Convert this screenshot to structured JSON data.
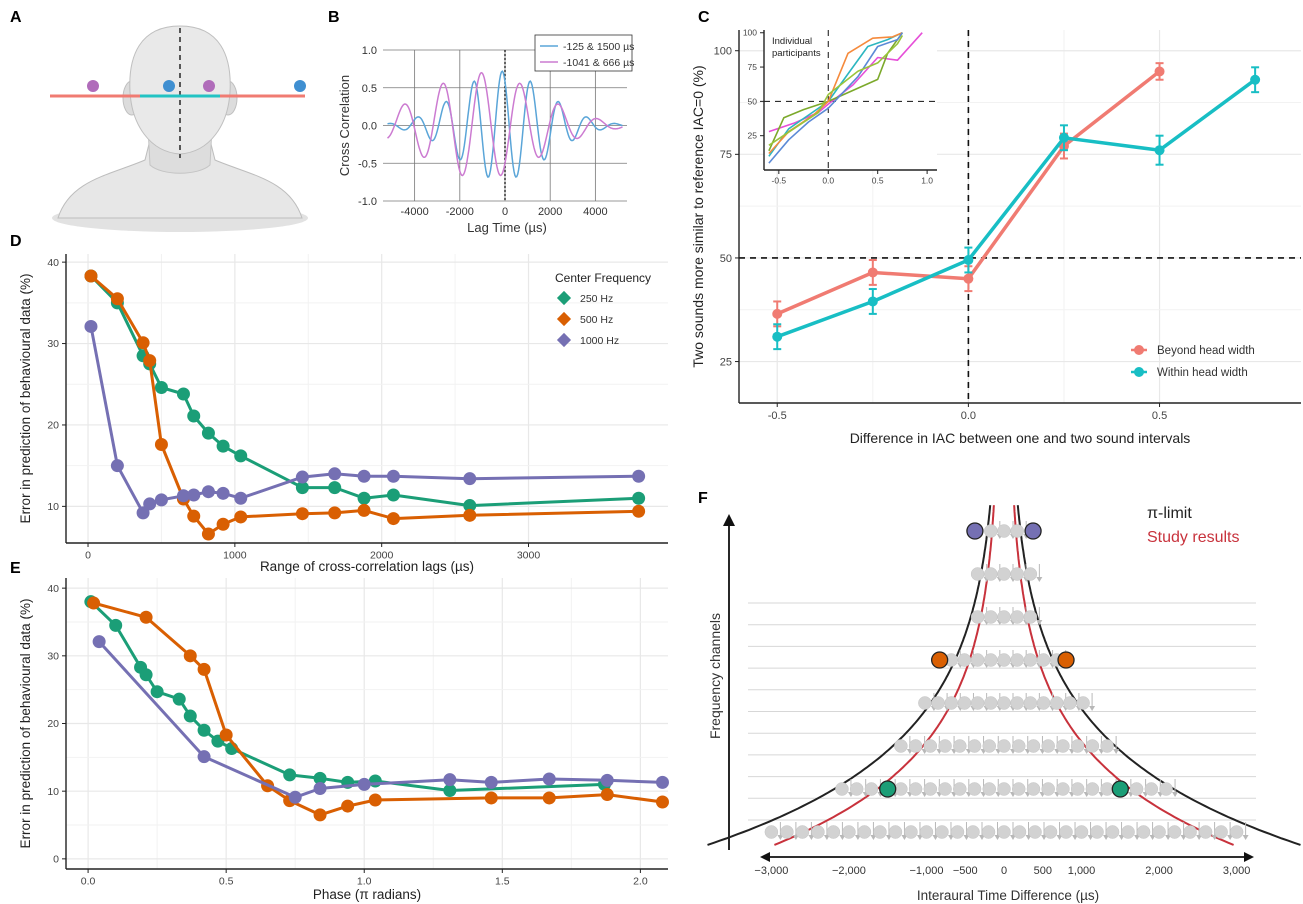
{
  "panel_letters": [
    "A",
    "B",
    "C",
    "D",
    "E",
    "F"
  ],
  "colors": {
    "green": "#1b9e77",
    "orange": "#d95f02",
    "purple": "#7570b3",
    "salmon": "#f07b72",
    "teal": "#18bec4",
    "blue": "#5aa5d8",
    "pink": "#cc7bd1",
    "red_head_line": "#f07b72",
    "teal_head_line": "#22c3c3",
    "head_dot_purple": "#b06cba",
    "head_dot_blue": "#3f8fd1",
    "grid": "#e6e6e6",
    "study_red": "#c8323c"
  },
  "chart_data": [
    {
      "id": "B",
      "type": "line",
      "xlabel": "Lag Time (µs)",
      "ylabel": "Cross Correlation",
      "xlim": [
        -5400,
        5400
      ],
      "ylim": [
        -1.0,
        1.0
      ],
      "x_ticks": [
        -4000,
        -2000,
        0,
        2000,
        4000
      ],
      "x_tick_labels": [
        "-4000",
        "-2000",
        "0",
        "2000",
        "4000"
      ],
      "y_ticks": [
        -1.0,
        -0.5,
        0.0,
        0.5,
        1.0
      ],
      "y_tick_labels": [
        "-1.0",
        "-0.5",
        "0.0",
        "0.5",
        "1.0"
      ],
      "grid": true,
      "legend_position": "top-right",
      "series": [
        {
          "name": "-125 & 1500 µs",
          "color": "#5aa5d8",
          "cf_hz": 800,
          "lag_us": 125,
          "env_sigma_us": 2300,
          "amp": 0.72
        },
        {
          "name": "-1041 & 666 µs",
          "color": "#cc7bd1",
          "cf_hz": 585,
          "lag_us": 1041,
          "env_sigma_us": 3000,
          "amp": 0.7
        }
      ]
    },
    {
      "id": "C",
      "type": "line",
      "xlabel": "Difference in IAC between one and two sound intervals",
      "ylabel": "Two sounds more similar to reference IAC=0 (%)",
      "xlim": [
        -0.6,
        0.87
      ],
      "ylim": [
        15,
        105
      ],
      "x_ticks": [
        -0.5,
        0.0,
        0.5
      ],
      "x_tick_labels": [
        "-0.5",
        "0.0",
        "0.5"
      ],
      "y_ticks": [
        25,
        50,
        75,
        100
      ],
      "y_tick_labels": [
        "25",
        "50",
        "75",
        "100"
      ],
      "grid": true,
      "legend_position": "bottom-right",
      "reference_lines": {
        "x": 0,
        "y": 50
      },
      "series": [
        {
          "name": "Beyond head width",
          "color": "#f07b72",
          "x": [
            -0.5,
            -0.25,
            0.0,
            0.25,
            0.5
          ],
          "y": [
            36.5,
            46.5,
            45.0,
            77.0,
            95.0
          ],
          "err": [
            3,
            3,
            3,
            3,
            2
          ]
        },
        {
          "name": "Within head width",
          "color": "#18bec4",
          "x": [
            -0.5,
            -0.25,
            0.0,
            0.25,
            0.5,
            0.75
          ],
          "y": [
            31.0,
            39.5,
            49.5,
            79.0,
            76.0,
            93.0
          ],
          "err": [
            3,
            3,
            3,
            3,
            3.5,
            3
          ]
        }
      ]
    },
    {
      "id": "C-inset",
      "type": "line",
      "title": "Individual\nparticipants",
      "xlim": [
        -0.65,
        1.1
      ],
      "ylim": [
        0,
        102
      ],
      "x_ticks": [
        -0.5,
        0.0,
        0.5,
        1.0
      ],
      "x_tick_labels": [
        "-0.5",
        "0.0",
        "0.5",
        "1.0"
      ],
      "y_ticks": [
        25,
        50,
        75,
        100
      ],
      "y_tick_labels": [
        "25",
        "50",
        "75",
        "100"
      ],
      "reference_lines": {
        "x": 0,
        "y": 50
      },
      "series": [
        {
          "color": "#e64fd8",
          "x": [
            -0.6,
            -0.35,
            -0.1,
            0.0,
            0.25,
            0.5,
            0.7,
            0.95
          ],
          "y": [
            28,
            34,
            42,
            48,
            62,
            82,
            80,
            100
          ]
        },
        {
          "color": "#2cb6c0",
          "x": [
            -0.6,
            -0.4,
            -0.2,
            0.0,
            0.2,
            0.4,
            0.6,
            0.75
          ],
          "y": [
            10,
            30,
            40,
            50,
            70,
            90,
            95,
            100
          ]
        },
        {
          "color": "#7ca92b",
          "x": [
            -0.6,
            -0.45,
            -0.25,
            0.0,
            0.25,
            0.5,
            0.6,
            0.75
          ],
          "y": [
            14,
            38,
            44,
            50,
            58,
            66,
            85,
            100
          ]
        },
        {
          "color": "#f58a3c",
          "x": [
            -0.6,
            -0.4,
            -0.15,
            0.0,
            0.2,
            0.45,
            0.65,
            0.75
          ],
          "y": [
            12,
            28,
            40,
            50,
            85,
            96,
            97,
            100
          ]
        },
        {
          "color": "#5c8ad6",
          "x": [
            -0.6,
            -0.4,
            -0.2,
            0.0,
            0.3,
            0.5,
            0.7,
            0.75
          ],
          "y": [
            5,
            22,
            35,
            45,
            68,
            90,
            95,
            100
          ]
        },
        {
          "color": "#9ac43a",
          "x": [
            -0.6,
            -0.35,
            -0.1,
            0.0,
            0.3,
            0.5,
            0.7,
            0.75
          ],
          "y": [
            18,
            30,
            42,
            55,
            72,
            78,
            92,
            98
          ]
        }
      ]
    },
    {
      "id": "D",
      "type": "line",
      "xlabel": "Range of cross-correlation lags (µs)",
      "ylabel": "Error in prediction of behavioural data (%)",
      "xlim": [
        -150,
        3950
      ],
      "ylim": [
        5.5,
        41
      ],
      "x_ticks": [
        0,
        1000,
        2000,
        3000
      ],
      "x_tick_labels": [
        "0",
        "1000",
        "2000",
        "3000"
      ],
      "y_ticks": [
        10,
        20,
        30,
        40
      ],
      "y_tick_labels": [
        "10",
        "20",
        "30",
        "40"
      ],
      "grid": true,
      "legend_title": "Center Frequency",
      "legend_position": "top-right",
      "series": [
        {
          "name": "250 Hz",
          "color": "#1b9e77",
          "x": [
            20,
            200,
            375,
            420,
            500,
            650,
            720,
            820,
            920,
            1040,
            1460,
            1680,
            1880,
            2080,
            2600,
            3750
          ],
          "y": [
            38.3,
            35.0,
            28.5,
            27.5,
            24.6,
            23.8,
            21.1,
            19.0,
            17.4,
            16.2,
            12.3,
            12.3,
            11.0,
            11.4,
            10.1,
            11.0
          ]
        },
        {
          "name": "500 Hz",
          "color": "#d95f02",
          "x": [
            20,
            200,
            375,
            420,
            500,
            650,
            720,
            820,
            920,
            1040,
            1460,
            1680,
            1880,
            2080,
            2600,
            3750
          ],
          "y": [
            38.3,
            35.5,
            30.1,
            27.9,
            17.6,
            10.9,
            8.8,
            6.6,
            7.8,
            8.7,
            9.1,
            9.2,
            9.5,
            8.5,
            8.9,
            9.4
          ]
        },
        {
          "name": "1000 Hz",
          "color": "#7570b3",
          "x": [
            20,
            200,
            375,
            420,
            500,
            650,
            720,
            820,
            920,
            1040,
            1460,
            1680,
            1880,
            2080,
            2600,
            3750
          ],
          "y": [
            32.1,
            15.0,
            9.2,
            10.3,
            10.8,
            11.3,
            11.4,
            11.8,
            11.6,
            11.0,
            13.6,
            14.0,
            13.7,
            13.7,
            13.4,
            13.7
          ]
        }
      ]
    },
    {
      "id": "E",
      "type": "line",
      "xlabel": "Phase (π radians)",
      "ylabel": "Error in prediction of behavioural data (%)",
      "xlim": [
        -0.08,
        2.1
      ],
      "ylim": [
        -1.5,
        41.5
      ],
      "x_ticks": [
        0.0,
        0.5,
        1.0,
        1.5,
        2.0
      ],
      "x_tick_labels": [
        "0.0",
        "0.5",
        "1.0",
        "1.5",
        "2.0"
      ],
      "y_ticks": [
        0,
        10,
        20,
        30,
        40
      ],
      "y_tick_labels": [
        "0",
        "10",
        "20",
        "30",
        "40"
      ],
      "grid": true,
      "series": [
        {
          "name": "250 Hz",
          "color": "#1b9e77",
          "x": [
            0.01,
            0.1,
            0.19,
            0.21,
            0.25,
            0.33,
            0.37,
            0.42,
            0.47,
            0.52,
            0.73,
            0.84,
            0.94,
            1.04,
            1.31,
            1.87
          ],
          "y": [
            38.0,
            34.5,
            28.3,
            27.2,
            24.7,
            23.6,
            21.1,
            19.0,
            17.4,
            16.3,
            12.4,
            11.9,
            11.3,
            11.5,
            10.1,
            11.0
          ]
        },
        {
          "name": "500 Hz",
          "color": "#d95f02",
          "x": [
            0.02,
            0.21,
            0.37,
            0.42,
            0.5,
            0.65,
            0.73,
            0.84,
            0.94,
            1.04,
            1.46,
            1.67,
            1.88,
            2.08
          ],
          "y": [
            37.8,
            35.7,
            30.0,
            28.0,
            18.3,
            10.8,
            8.6,
            6.5,
            7.8,
            8.7,
            9.0,
            9.0,
            9.5,
            8.4
          ]
        },
        {
          "name": "1000 Hz",
          "color": "#7570b3",
          "x": [
            0.04,
            0.42,
            0.75,
            0.84,
            1.0,
            1.31,
            1.46,
            1.67,
            1.88,
            2.08
          ],
          "y": [
            32.1,
            15.1,
            9.1,
            10.4,
            11.0,
            11.7,
            11.3,
            11.8,
            11.6,
            11.3
          ]
        }
      ]
    },
    {
      "id": "F",
      "type": "scatter",
      "xlabel": "Interaural Time Difference (µs)",
      "ylabel": "Frequency channels",
      "xlim": [
        -3250,
        3250
      ],
      "x_ticks": [
        -3000,
        -2000,
        -1000,
        -500,
        0,
        500,
        1000,
        2000,
        3000
      ],
      "x_tick_labels": [
        "−3,000",
        "−2,000",
        "−1,000",
        "−500",
        "0",
        "500",
        "1,000",
        "2,000",
        "3,000"
      ],
      "legend": [
        {
          "label": "π-limit",
          "color": "#222222"
        },
        {
          "label": "Study results",
          "color": "#c8323c"
        }
      ],
      "rows": 8,
      "highlights": [
        {
          "x": -375,
          "row": 7,
          "color": "#7570b3"
        },
        {
          "x": 375,
          "row": 7,
          "color": "#7570b3"
        },
        {
          "x": -830,
          "row": 4,
          "color": "#d95f02"
        },
        {
          "x": 800,
          "row": 4,
          "color": "#d95f02"
        },
        {
          "x": -1500,
          "row": 1,
          "color": "#1b9e77"
        },
        {
          "x": 1500,
          "row": 1,
          "color": "#1b9e77"
        }
      ]
    }
  ]
}
